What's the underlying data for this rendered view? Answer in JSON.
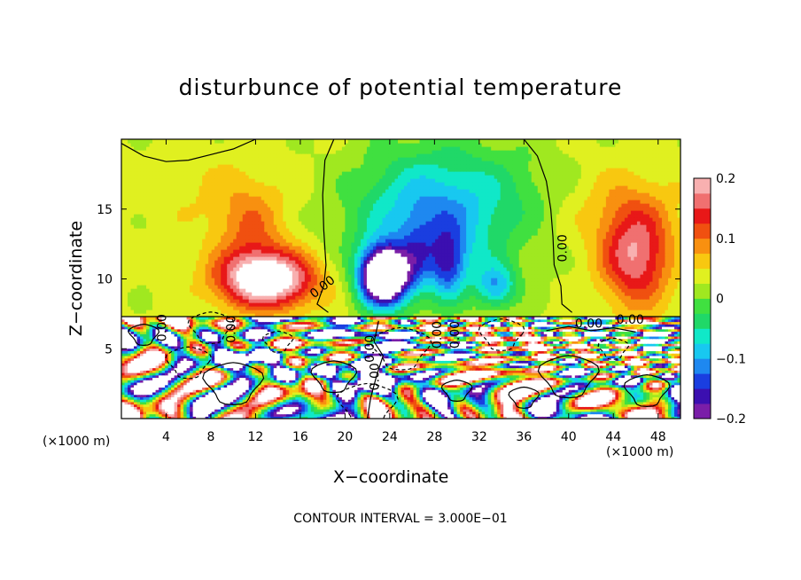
{
  "chart_data": {
    "type": "heatmap",
    "title": "disturbunce of potential temperature",
    "xlabel": "X−coordinate",
    "ylabel": "Z−coordinate",
    "x_unit": "(×1000 m)",
    "x_unit_right": "(×1000 m)",
    "footer": "CONTOUR INTERVAL = 3.000E−01",
    "xlim": [
      0,
      50
    ],
    "ylim": [
      0,
      20
    ],
    "x_ticks": [
      "4",
      "8",
      "12",
      "16",
      "20",
      "24",
      "28",
      "32",
      "36",
      "40",
      "44",
      "48"
    ],
    "x_tick_values": [
      4,
      8,
      12,
      16,
      20,
      24,
      28,
      32,
      36,
      40,
      44,
      48
    ],
    "y_ticks": [
      "5",
      "10",
      "15"
    ],
    "y_tick_values": [
      5,
      10,
      15
    ],
    "colorbar": {
      "ticks": [
        "0.2",
        "0.1",
        "0",
        "−0.1",
        "−0.2"
      ],
      "tick_values": [
        0.2,
        0.1,
        0,
        -0.1,
        -0.2
      ],
      "range": [
        -0.2,
        0.2
      ],
      "colors": [
        "#7a1ea8",
        "#3b0fb0",
        "#1a3ee0",
        "#1e88f0",
        "#18c8f0",
        "#10e8c8",
        "#20d868",
        "#40e040",
        "#a0e820",
        "#e0f020",
        "#f8c810",
        "#f89010",
        "#f05010",
        "#e81818",
        "#f07070",
        "#f8b0b0"
      ]
    },
    "contour_labels": [
      "0.00",
      "0.00",
      "0.00",
      "0.00",
      "0.00",
      "0.00",
      "0.00",
      "0.00",
      "0.00",
      "0.00"
    ]
  }
}
